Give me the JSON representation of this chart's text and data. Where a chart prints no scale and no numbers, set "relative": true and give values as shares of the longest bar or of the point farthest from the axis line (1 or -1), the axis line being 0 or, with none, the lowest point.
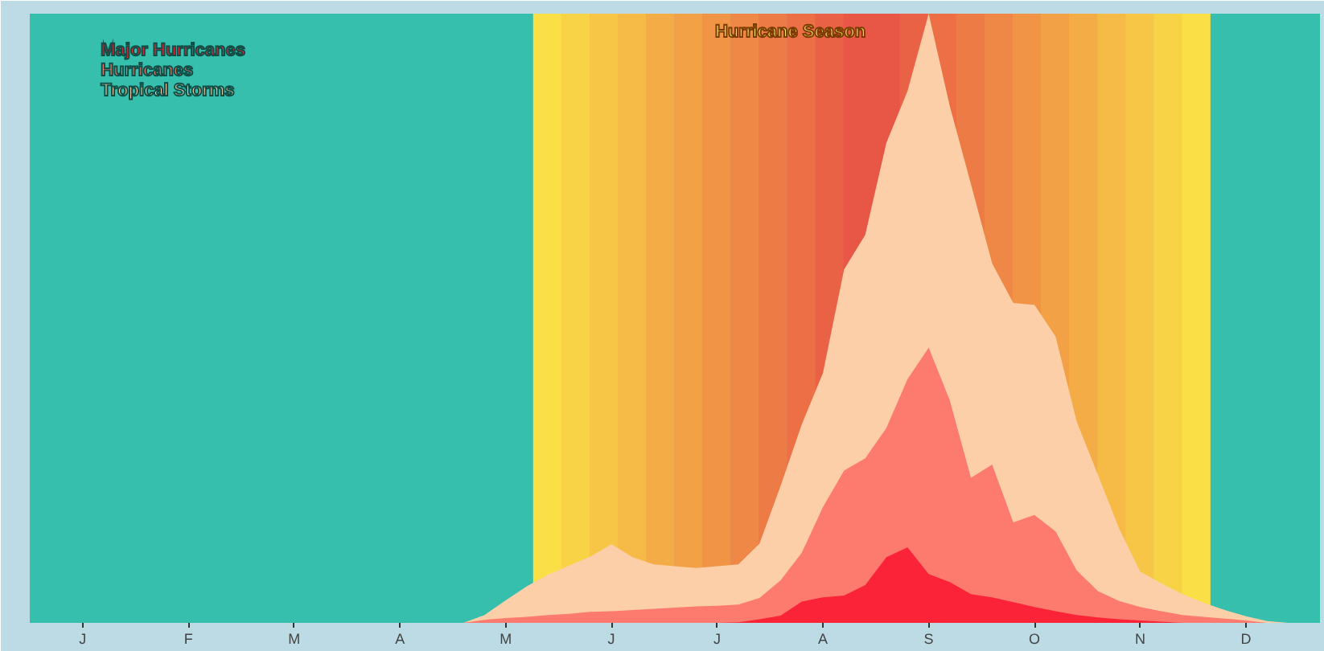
{
  "chart_data": {
    "type": "area",
    "relative": true,
    "categories": [
      null,
      null,
      "J",
      null,
      null,
      null,
      null,
      "F",
      null,
      null,
      null,
      null,
      "M",
      null,
      null,
      null,
      null,
      "A",
      null,
      null,
      null,
      null,
      "M",
      null,
      null,
      null,
      null,
      "J",
      null,
      null,
      null,
      null,
      "J",
      null,
      null,
      null,
      null,
      "A",
      null,
      null,
      null,
      null,
      "S",
      null,
      null,
      null,
      null,
      "O",
      null,
      null,
      null,
      null,
      "N",
      null,
      null,
      null,
      null,
      "D",
      null,
      null,
      null
    ],
    "series": [
      {
        "name": "Major Hurricanes",
        "color": "#fb2338",
        "values": [
          0,
          0,
          0,
          0,
          0,
          0,
          0,
          0,
          0,
          0,
          0,
          0,
          0,
          0,
          0,
          0,
          0,
          0,
          0,
          0,
          0,
          0,
          0,
          0,
          0,
          0,
          0,
          0,
          0,
          0,
          0,
          0,
          0,
          0.001,
          0.006,
          0.012,
          0.035,
          0.042,
          0.045,
          0.062,
          0.108,
          0.124,
          0.08,
          0.067,
          0.047,
          0.042,
          0.034,
          0.026,
          0.019,
          0.013,
          0.009,
          0.006,
          0.004,
          0.002,
          0,
          0,
          0,
          0,
          0,
          0,
          0
        ]
      },
      {
        "name": "Hurricanes",
        "color": "#fd7b6e",
        "values": [
          0,
          0,
          0,
          0,
          0,
          0,
          0,
          0,
          0,
          0,
          0,
          0,
          0,
          0,
          0,
          0,
          0,
          0,
          0,
          0,
          0,
          0.005,
          0.008,
          0.01,
          0.013,
          0.015,
          0.018,
          0.019,
          0.021,
          0.023,
          0.025,
          0.027,
          0.028,
          0.03,
          0.041,
          0.07,
          0.115,
          0.19,
          0.25,
          0.27,
          0.32,
          0.4,
          0.452,
          0.365,
          0.238,
          0.26,
          0.165,
          0.177,
          0.15,
          0.086,
          0.052,
          0.036,
          0.026,
          0.019,
          0.013,
          0.01,
          0.007,
          0.004,
          0,
          0,
          0
        ]
      },
      {
        "name": "Tropical Storms",
        "color": "#fccfa8",
        "values": [
          0,
          0,
          0,
          0,
          0,
          0,
          0,
          0,
          0,
          0,
          0,
          0,
          0,
          0,
          0,
          0,
          0,
          0,
          0,
          0,
          0,
          0.013,
          0.037,
          0.06,
          0.079,
          0.094,
          0.109,
          0.129,
          0.108,
          0.096,
          0.093,
          0.09,
          0.093,
          0.096,
          0.13,
          0.225,
          0.326,
          0.41,
          0.58,
          0.637,
          0.788,
          0.873,
          1,
          0.848,
          0.72,
          0.59,
          0.525,
          0.522,
          0.47,
          0.33,
          0.243,
          0.155,
          0.084,
          0.065,
          0.047,
          0.033,
          0.021,
          0.011,
          0.003,
          0,
          0
        ]
      }
    ],
    "annotations": [
      "Hurricane Season"
    ],
    "legend": "top left"
  }
}
